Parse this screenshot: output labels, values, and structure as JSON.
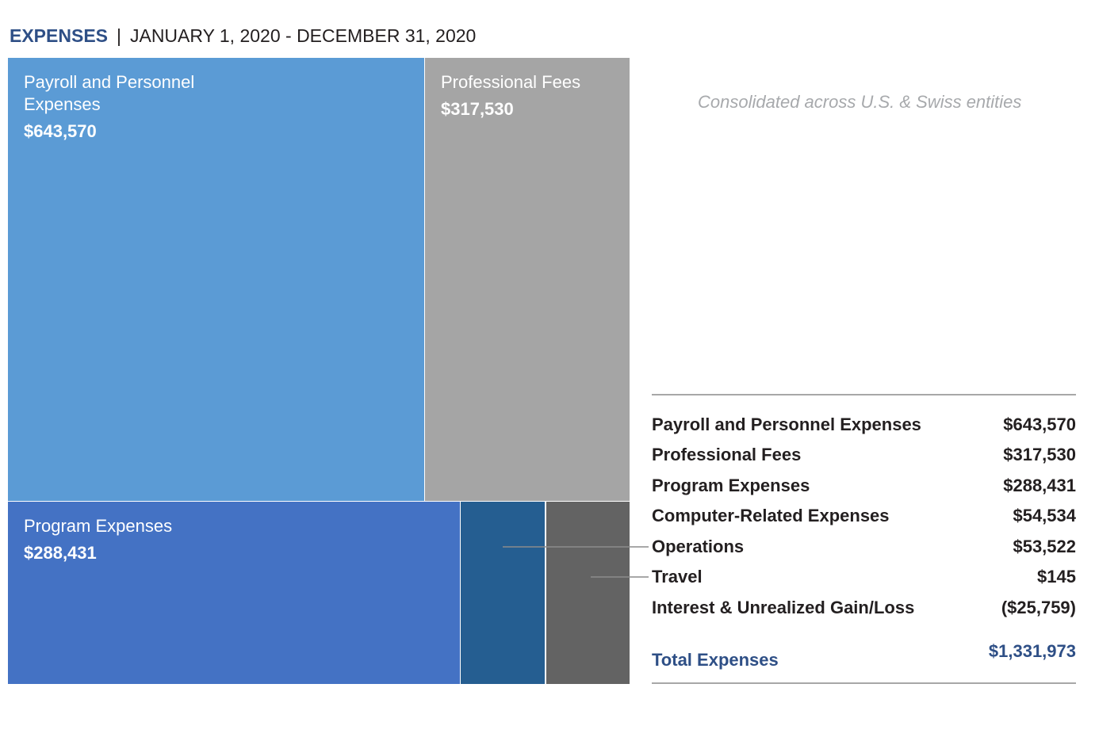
{
  "header": {
    "label": "EXPENSES",
    "separator": "|",
    "period": "JANUARY 1, 2020 - DECEMBER 31, 2020"
  },
  "note": "Consolidated across U.S. & Swiss entities",
  "colors": {
    "payroll": "#5b9bd5",
    "professional": "#a5a5a5",
    "program": "#4472c4",
    "computer": "#255e91",
    "operations": "#636363",
    "accent": "#2e4f86"
  },
  "chart_data": {
    "type": "treemap",
    "title": "EXPENSES | JANUARY 1, 2020 - DECEMBER 31, 2020",
    "units": "USD",
    "items": [
      {
        "name": "Payroll and Personnel Expenses",
        "tile_label_line1": "Payroll and Personnel",
        "tile_label_line2": "Expenses",
        "value": 643570,
        "display": "$643,570"
      },
      {
        "name": "Professional Fees",
        "tile_label_line1": "Professional Fees",
        "value": 317530,
        "display": "$317,530"
      },
      {
        "name": "Program Expenses",
        "tile_label_line1": "Program Expenses",
        "value": 288431,
        "display": "$288,431"
      },
      {
        "name": "Computer-Related Expenses",
        "value": 54534,
        "display": "$54,534"
      },
      {
        "name": "Operations",
        "value": 53522,
        "display": "$53,522"
      },
      {
        "name": "Travel",
        "value": 145,
        "display": "$145"
      },
      {
        "name": "Interest & Unrealized Gain/Loss",
        "value": -25759,
        "display": "($25,759)"
      }
    ],
    "total": {
      "label": "Total Expenses",
      "value": 1331973,
      "display": "$1,331,973"
    }
  }
}
